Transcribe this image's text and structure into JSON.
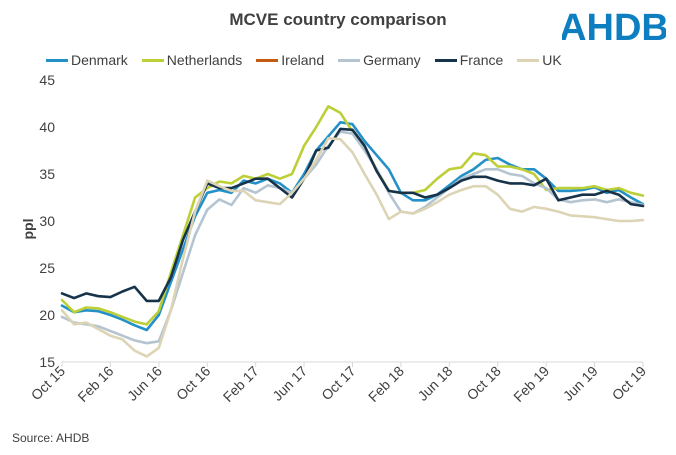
{
  "title": "MCVE country comparison",
  "logo_text": "AHDB",
  "source": "Source: AHDB",
  "colors": {
    "logo": "#0d7fc1",
    "axis": "#d9d9d9"
  },
  "chart_data": {
    "type": "line",
    "title": "MCVE country comparison",
    "xlabel": "",
    "ylabel": "ppl",
    "ylim": [
      15,
      45
    ],
    "yticks": [
      15,
      20,
      25,
      30,
      35,
      40,
      45
    ],
    "grid": false,
    "legend": "top",
    "x": [
      "Oct 15",
      "Nov 15",
      "Dec 15",
      "Jan 16",
      "Feb 16",
      "Mar 16",
      "Apr 16",
      "May 16",
      "Jun 16",
      "Jul 16",
      "Aug 16",
      "Sep 16",
      "Oct 16",
      "Nov 16",
      "Dec 16",
      "Jan 17",
      "Feb 17",
      "Mar 17",
      "Apr 17",
      "May 17",
      "Jun 17",
      "Jul 17",
      "Aug 17",
      "Sep 17",
      "Oct 17",
      "Nov 17",
      "Dec 17",
      "Jan 18",
      "Feb 18",
      "Mar 18",
      "Apr 18",
      "May 18",
      "Jun 18",
      "Jul 18",
      "Aug 18",
      "Sep 18",
      "Oct 18",
      "Nov 18",
      "Dec 18",
      "Jan 19",
      "Feb 19",
      "Mar 19",
      "Apr 19",
      "May 19",
      "Jun 19",
      "Jul 19",
      "Aug 19",
      "Sep 19",
      "Oct 19"
    ],
    "xtick_labels": [
      "Oct 15",
      "Feb 16",
      "Jun 16",
      "Oct 16",
      "Feb 17",
      "Jun 17",
      "Oct 17",
      "Feb 18",
      "Jun 18",
      "Oct 18",
      "Feb 19",
      "Jun 19",
      "Oct 19"
    ],
    "series": [
      {
        "name": "Denmark",
        "color": "#2391c8",
        "values": [
          21.0,
          20.3,
          20.5,
          20.4,
          20.0,
          19.5,
          18.9,
          18.4,
          20.0,
          23.5,
          27.0,
          30.5,
          33.0,
          33.3,
          33.0,
          34.3,
          34.0,
          34.5,
          34.0,
          33.0,
          35.0,
          37.5,
          39.0,
          40.5,
          40.3,
          38.5,
          37.0,
          35.5,
          33.0,
          32.2,
          32.2,
          32.8,
          33.8,
          34.8,
          35.5,
          36.5,
          36.7,
          36.0,
          35.5,
          35.5,
          34.5,
          33.2,
          33.2,
          33.3,
          33.6,
          33.0,
          33.3,
          32.5,
          31.8
        ]
      },
      {
        "name": "Netherlands",
        "color": "#bdcf36",
        "values": [
          21.6,
          20.3,
          20.8,
          20.7,
          20.3,
          19.8,
          19.3,
          19.0,
          20.4,
          24.5,
          28.5,
          32.5,
          33.5,
          34.2,
          34.0,
          34.8,
          34.5,
          35.0,
          34.5,
          35.0,
          38.0,
          40.0,
          42.2,
          41.5,
          39.5,
          37.8,
          35.5,
          33.2,
          33.0,
          33.0,
          33.3,
          34.5,
          35.5,
          35.7,
          37.2,
          37.0,
          35.8,
          35.8,
          35.5,
          35.0,
          33.3,
          33.5,
          33.5,
          33.5,
          33.7,
          33.3,
          33.5,
          33.0,
          32.7
        ]
      },
      {
        "name": "Ireland",
        "color": "#c55a11",
        "values": [
          null,
          null,
          null,
          null,
          null,
          null,
          null,
          null,
          null,
          null,
          null,
          null,
          null,
          null,
          null,
          null,
          null,
          null,
          null,
          null,
          null,
          null,
          null,
          null,
          null,
          null,
          null,
          null,
          null,
          null,
          null,
          null,
          null,
          null,
          null,
          null,
          null,
          null,
          null,
          null,
          null,
          null,
          null,
          null,
          null,
          null,
          null,
          null,
          null
        ]
      },
      {
        "name": "Germany",
        "color": "#b4c4d1",
        "values": [
          19.8,
          19.2,
          19.0,
          18.8,
          18.3,
          17.8,
          17.3,
          17.0,
          17.2,
          20.5,
          24.5,
          28.5,
          31.2,
          32.3,
          31.7,
          33.5,
          33.0,
          33.8,
          33.5,
          33.0,
          34.5,
          36.0,
          38.0,
          39.5,
          39.3,
          37.5,
          35.5,
          33.0,
          31.0,
          30.8,
          31.5,
          32.5,
          33.5,
          34.5,
          35.0,
          35.5,
          35.5,
          35.0,
          34.8,
          34.0,
          33.5,
          32.3,
          32.0,
          32.2,
          32.3,
          32.0,
          32.3,
          32.0,
          31.7
        ]
      },
      {
        "name": "France",
        "color": "#16334a",
        "values": [
          22.3,
          21.8,
          22.3,
          22.0,
          21.9,
          22.5,
          23.0,
          21.5,
          21.5,
          24.0,
          28.0,
          31.0,
          34.0,
          33.5,
          33.5,
          34.0,
          34.5,
          34.5,
          33.5,
          32.5,
          34.5,
          37.5,
          37.8,
          39.8,
          39.7,
          38.0,
          35.3,
          33.2,
          33.0,
          33.0,
          32.5,
          32.8,
          33.5,
          34.3,
          34.7,
          34.7,
          34.3,
          34.0,
          34.0,
          33.8,
          34.5,
          32.2,
          32.5,
          32.8,
          32.8,
          33.2,
          32.8,
          31.8,
          31.6
        ]
      },
      {
        "name": "UK",
        "color": "#ddd4b6",
        "values": [
          20.5,
          19.0,
          19.2,
          18.5,
          17.8,
          17.4,
          16.2,
          15.6,
          16.5,
          20.5,
          26.0,
          31.0,
          34.3,
          33.7,
          33.2,
          33.2,
          32.2,
          32.0,
          31.8,
          33.0,
          34.5,
          36.5,
          38.8,
          38.7,
          37.3,
          35.0,
          32.8,
          30.2,
          31.0,
          30.8,
          31.3,
          32.0,
          32.8,
          33.3,
          33.7,
          33.7,
          32.8,
          31.3,
          31.0,
          31.5,
          31.3,
          31.0,
          30.6,
          30.5,
          30.4,
          30.2,
          30.0,
          30.0,
          30.1
        ]
      }
    ]
  }
}
